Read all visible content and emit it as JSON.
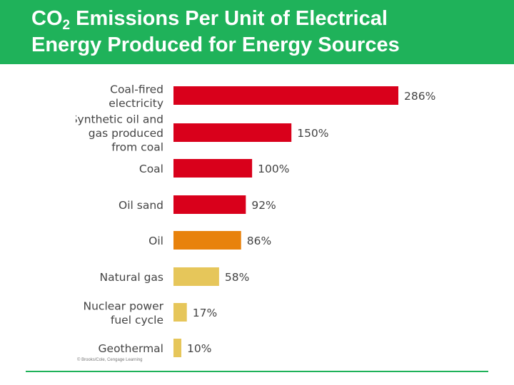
{
  "title": {
    "part1": "CO",
    "sub": "2",
    "part2": " Emissions Per Unit of Electrical",
    "line2": "Energy Produced for Energy Sources"
  },
  "credit": "© Brooks/Cole, Cengage Learning",
  "colors": {
    "title_bar": "#1fb25a",
    "red": "#d9001b",
    "orange": "#e8820c",
    "yellow": "#e6c65a"
  },
  "chart_data": {
    "type": "bar",
    "orientation": "horizontal",
    "categories": [
      [
        "Coal-fired",
        "electricity"
      ],
      [
        "Synthetic oil and",
        "gas produced",
        "from coal"
      ],
      [
        "Coal"
      ],
      [
        "Oil sand"
      ],
      [
        "Oil"
      ],
      [
        "Natural gas"
      ],
      [
        "Nuclear power",
        "fuel cycle"
      ],
      [
        "Geothermal"
      ]
    ],
    "values": [
      286,
      150,
      100,
      92,
      86,
      58,
      17,
      10
    ],
    "value_labels": [
      "286%",
      "150%",
      "100%",
      "92%",
      "86%",
      "58%",
      "17%",
      "10%"
    ],
    "colors": [
      "#d9001b",
      "#d9001b",
      "#d9001b",
      "#d9001b",
      "#e8820c",
      "#e6c65a",
      "#e6c65a",
      "#e6c65a"
    ],
    "unit": "%",
    "xlim": [
      0,
      286
    ],
    "grid": false,
    "legend": "none"
  }
}
